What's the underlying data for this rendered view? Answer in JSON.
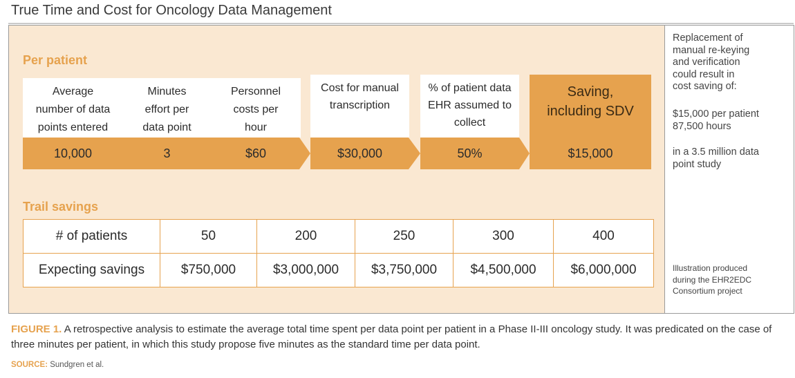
{
  "title": "True Time and Cost for Oncology Data Management",
  "per_patient": {
    "heading": "Per patient",
    "columns": [
      {
        "lines": [
          "Average",
          "number of data",
          "points entered"
        ],
        "value": "10,000"
      },
      {
        "lines": [
          "Minutes",
          "effort per",
          "data point"
        ],
        "value": "3"
      },
      {
        "lines": [
          "Personnel",
          "costs per",
          "hour"
        ],
        "value": "$60"
      },
      {
        "lines": [
          "Cost for manual",
          "transcription"
        ],
        "value": "$30,000"
      },
      {
        "lines": [
          "% of patient data",
          "EHR assumed to",
          "collect"
        ],
        "value": "50%"
      },
      {
        "lines": [
          "Saving,",
          "including SDV"
        ],
        "value": "$15,000"
      }
    ]
  },
  "trail_savings": {
    "heading": "Trail savings",
    "rows": [
      {
        "label": "# of patients",
        "values": [
          "50",
          "200",
          "250",
          "300",
          "400"
        ]
      },
      {
        "label": "Expecting savings",
        "values": [
          "$750,000",
          "$3,000,000",
          "$3,750,000",
          "$4,500,000",
          "$6,000,000"
        ]
      }
    ]
  },
  "sidebar": {
    "intro_lines": [
      "Replacement of",
      "manual re-keying",
      "and verification",
      "could result in",
      "cost saving of:"
    ],
    "saving_lines": [
      "$15,000 per patient",
      "87,500 hours"
    ],
    "study_lines": [
      "in a 3.5 million data",
      "point study"
    ],
    "credit_lines": [
      "Illustration produced",
      "during the EHR2EDC",
      "Consortium project"
    ]
  },
  "caption": {
    "label": "FIGURE 1.",
    "text": "A retrospective analysis to estimate the average total time spent per data point per patient in a Phase II-III oncology study. It was predicated on the case of three minutes per patient, in which this study propose five minutes as the standard time per data point."
  },
  "source": {
    "label": "SOURCE:",
    "text": "Sundgren et al."
  },
  "colors": {
    "accent": "#e6a24e",
    "panel": "#fae8d2",
    "accent_text": "#3a2a14"
  }
}
